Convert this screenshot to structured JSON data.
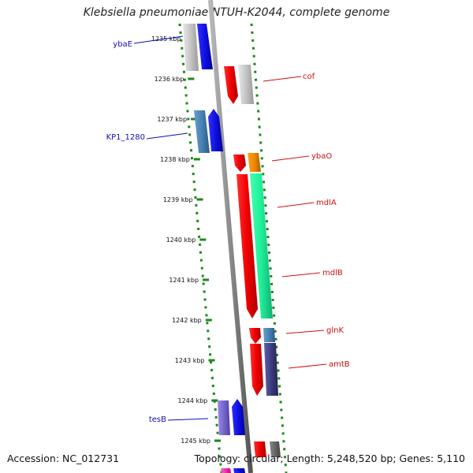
{
  "title": "Klebsiella pneumoniae NTUH-K2044, complete genome",
  "footer": {
    "accession": "Accession: NC_012731",
    "summary": "Topology: circular; Length: 5,248,520 bp; Genes: 5,110"
  },
  "map": {
    "kbp_ticks": [
      {
        "label": "1235 kbp",
        "kbp": 1235
      },
      {
        "label": "1236 kbp",
        "kbp": 1236
      },
      {
        "label": "1237 kbp",
        "kbp": 1237
      },
      {
        "label": "1238 kbp",
        "kbp": 1238
      },
      {
        "label": "1239 kbp",
        "kbp": 1239
      },
      {
        "label": "1240 kbp",
        "kbp": 1240
      },
      {
        "label": "1241 kbp",
        "kbp": 1241
      },
      {
        "label": "1242 kbp",
        "kbp": 1242
      },
      {
        "label": "1243 kbp",
        "kbp": 1243
      },
      {
        "label": "1244 kbp",
        "kbp": 1244
      },
      {
        "label": "1245 kbp",
        "kbp": 1245
      }
    ],
    "left_gene_labels": [
      {
        "name": "ybaE",
        "color": "#1010b0"
      },
      {
        "name": "KP1_1280",
        "color": "#1010b0"
      },
      {
        "name": "tesB",
        "color": "#1010b0"
      }
    ],
    "right_gene_labels": [
      {
        "name": "cof",
        "color": "#cc1010"
      },
      {
        "name": "ybaO",
        "color": "#cc1010"
      },
      {
        "name": "mdlA",
        "color": "#cc1010"
      },
      {
        "name": "mdlB",
        "color": "#cc1010"
      },
      {
        "name": "glnK",
        "color": "#cc1010"
      },
      {
        "name": "amtB",
        "color": "#cc1010"
      }
    ],
    "colors": {
      "backbone": "#808080",
      "tick_green": "#1a8a1a",
      "red": "#ee1111",
      "blue": "#1111ee",
      "gray": "#c0c0c0",
      "steelblue": "#4682b4",
      "spring_green": "#22ee99",
      "orange": "#ee8800",
      "slate": "#3c3c80",
      "purple": "#7766cc",
      "magenta": "#ee22aa"
    }
  }
}
